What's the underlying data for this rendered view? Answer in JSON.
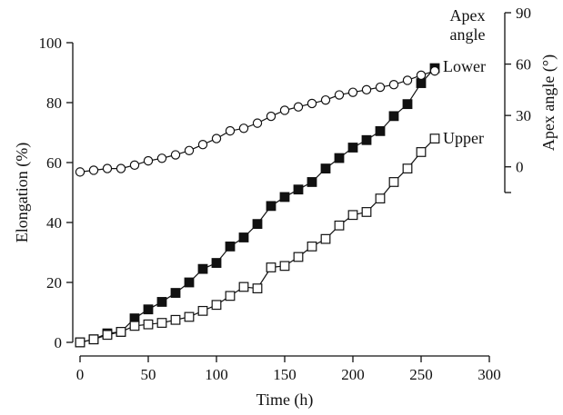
{
  "chart_data": {
    "type": "line",
    "xlabel": "Time (h)",
    "ylabel": "Elongation (%)",
    "y2label": "Apex angle (°)",
    "xlim": [
      0,
      300
    ],
    "ylim": [
      0,
      100
    ],
    "y2lim": [
      -15,
      90
    ],
    "x_ticks": [
      0,
      50,
      100,
      150,
      200,
      250,
      300
    ],
    "y_ticks": [
      0,
      20,
      40,
      60,
      80,
      100
    ],
    "y2_ticks": [
      0,
      30,
      60,
      90
    ],
    "grid": false,
    "series": [
      {
        "name": "Lower",
        "axis": "left",
        "marker": "filled-square",
        "x": [
          0,
          10,
          20,
          30,
          40,
          50,
          60,
          70,
          80,
          90,
          100,
          110,
          120,
          130,
          140,
          150,
          160,
          170,
          180,
          190,
          200,
          210,
          220,
          230,
          240,
          250,
          260
        ],
        "y": [
          0,
          1,
          3,
          3.5,
          8,
          11,
          13.5,
          16.5,
          20,
          24.5,
          26.5,
          32,
          35,
          39.5,
          45.5,
          48.5,
          51,
          53.5,
          58,
          61.5,
          65,
          67.5,
          70.5,
          75.5,
          79.5,
          86.5,
          91.5
        ]
      },
      {
        "name": "Upper",
        "axis": "left",
        "marker": "open-square",
        "x": [
          0,
          10,
          20,
          30,
          40,
          50,
          60,
          70,
          80,
          90,
          100,
          110,
          120,
          130,
          140,
          150,
          160,
          170,
          180,
          190,
          200,
          210,
          220,
          230,
          240,
          250,
          260
        ],
        "y": [
          0,
          1,
          2.5,
          3.5,
          5.5,
          6,
          6.5,
          7.5,
          8.5,
          10.5,
          12.5,
          15.5,
          18.5,
          18,
          25,
          25.5,
          28.5,
          32,
          34.5,
          39,
          42.5,
          43.5,
          48,
          53.5,
          58,
          63.5,
          68
        ]
      },
      {
        "name": "Apex angle",
        "axis": "right",
        "marker": "open-circle",
        "x": [
          0,
          10,
          20,
          30,
          40,
          50,
          60,
          70,
          80,
          90,
          100,
          110,
          120,
          130,
          140,
          150,
          160,
          170,
          180,
          190,
          200,
          210,
          220,
          230,
          240,
          250,
          260
        ],
        "y": [
          -3,
          -2,
          -1,
          -1,
          1,
          3.5,
          5,
          7,
          9.5,
          13,
          16.5,
          21,
          22.5,
          25.5,
          29.5,
          33,
          35,
          37,
          39,
          42,
          43.5,
          45,
          46.5,
          48,
          50.5,
          53.5,
          56
        ]
      }
    ],
    "series_labels": {
      "lower": "Lower",
      "upper": "Upper",
      "apex_line1": "Apex",
      "apex_line2": "angle"
    }
  }
}
